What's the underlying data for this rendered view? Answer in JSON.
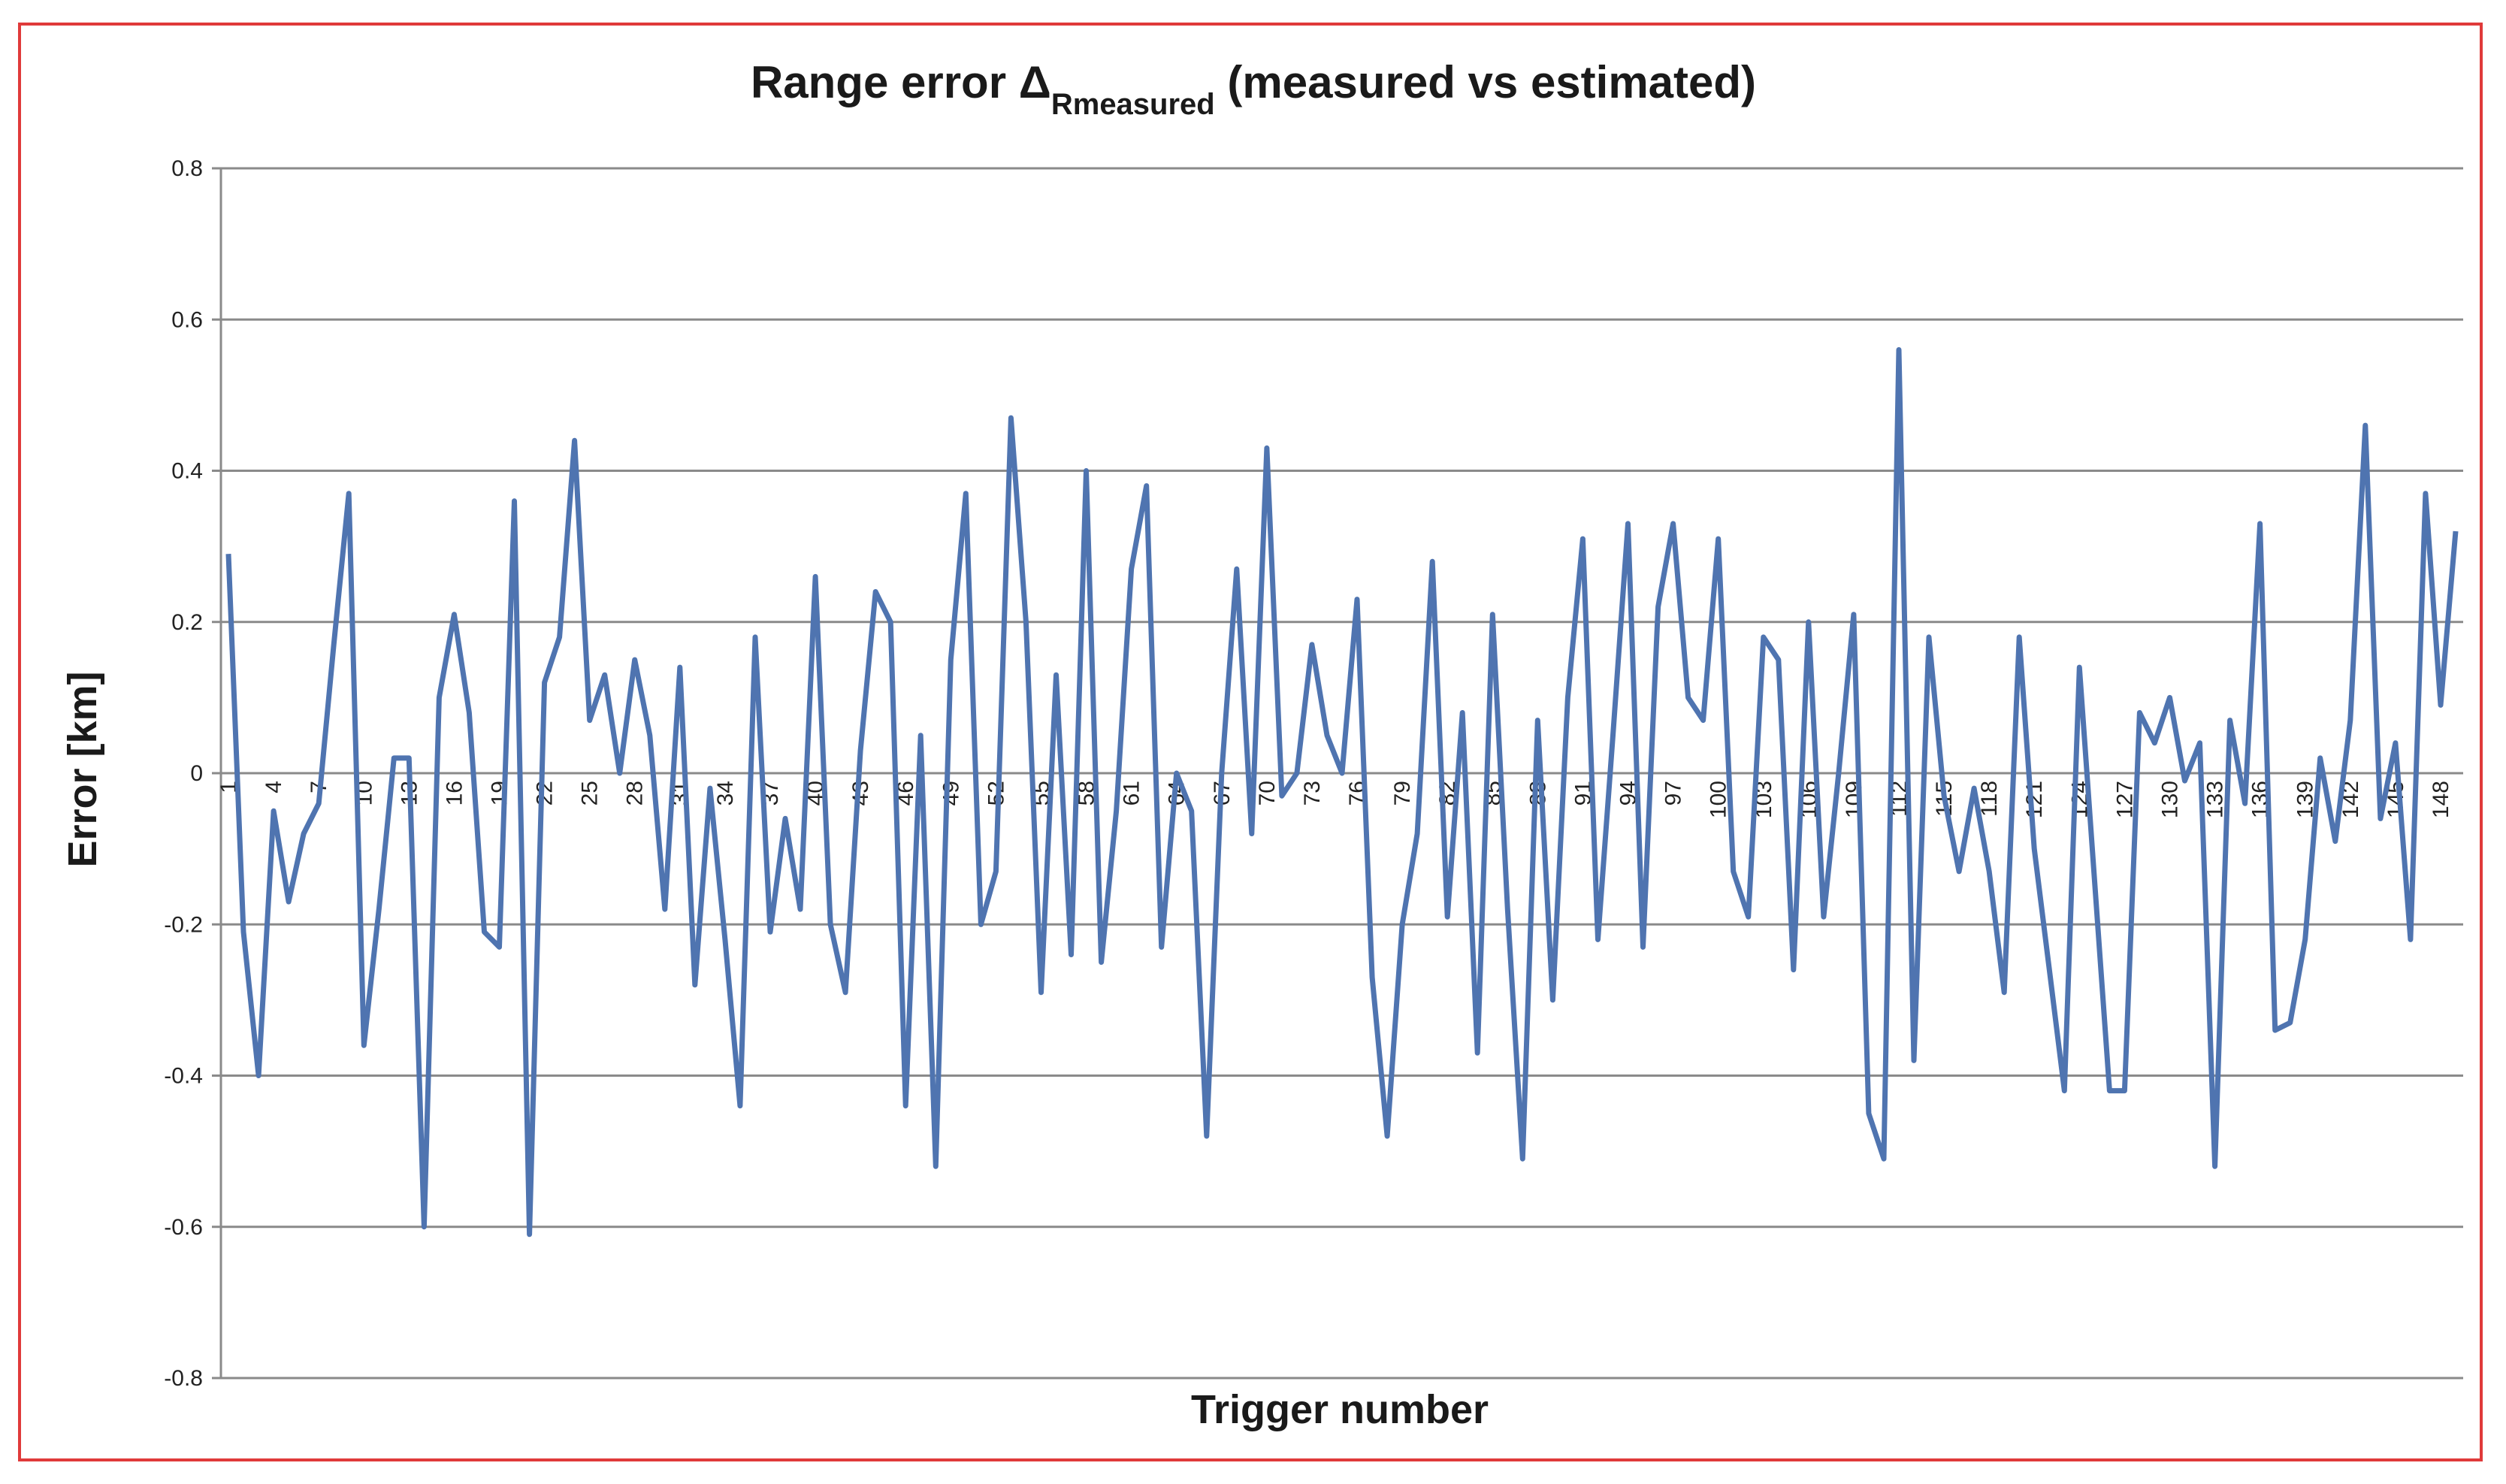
{
  "chart_data": {
    "type": "line",
    "title": "Range error Δ",
    "title_subscript": "Rmeasured",
    "title_suffix": " (measured vs estimated)",
    "xlabel": "Trigger number",
    "ylabel": "Error [km]",
    "ylim": [
      -0.8,
      0.8
    ],
    "yticks": [
      "0.8",
      "0.6",
      "0.4",
      "0.2",
      "0",
      "-0.2",
      "-0.4",
      "-0.6",
      "-0.8"
    ],
    "xtick_labels": [
      "1",
      "4",
      "7",
      "10",
      "13",
      "16",
      "19",
      "22",
      "25",
      "28",
      "31",
      "34",
      "37",
      "40",
      "43",
      "46",
      "49",
      "52",
      "55",
      "58",
      "61",
      "64",
      "67",
      "70",
      "73",
      "76",
      "79",
      "82",
      "85",
      "88",
      "91",
      "94",
      "97",
      "100",
      "103",
      "106",
      "109",
      "112",
      "115",
      "118",
      "121",
      "124",
      "127",
      "130",
      "133",
      "136",
      "139",
      "142",
      "145",
      "148"
    ],
    "grid": true,
    "legend": "none",
    "series_color": "#4f74b0",
    "x_start": 1,
    "values": [
      0.29,
      -0.21,
      -0.4,
      -0.05,
      -0.17,
      -0.08,
      -0.04,
      0.17,
      0.37,
      -0.36,
      -0.18,
      0.02,
      0.02,
      -0.6,
      0.1,
      0.21,
      0.08,
      -0.21,
      -0.23,
      0.36,
      -0.61,
      0.12,
      0.18,
      0.44,
      0.07,
      0.13,
      0.0,
      0.15,
      0.05,
      -0.18,
      0.14,
      -0.28,
      -0.02,
      -0.22,
      -0.44,
      0.18,
      -0.21,
      -0.06,
      -0.18,
      0.26,
      -0.2,
      -0.29,
      0.03,
      0.24,
      0.2,
      -0.44,
      0.05,
      -0.52,
      0.15,
      0.37,
      -0.2,
      -0.13,
      0.47,
      0.2,
      -0.29,
      0.13,
      -0.24,
      0.4,
      -0.25,
      -0.05,
      0.27,
      0.38,
      -0.23,
      0.0,
      -0.05,
      -0.48,
      0.0,
      0.27,
      -0.08,
      0.43,
      -0.03,
      0.0,
      0.17,
      0.05,
      0.0,
      0.23,
      -0.27,
      -0.48,
      -0.2,
      -0.08,
      0.28,
      -0.19,
      0.08,
      -0.37,
      0.21,
      -0.18,
      -0.51,
      0.07,
      -0.3,
      0.1,
      0.31,
      -0.22,
      0.05,
      0.33,
      -0.23,
      0.22,
      0.33,
      0.1,
      0.07,
      0.31,
      -0.13,
      -0.19,
      0.18,
      0.15,
      -0.26,
      0.2,
      -0.19,
      0.0,
      0.21,
      -0.45,
      -0.51,
      0.56,
      -0.38,
      0.18,
      -0.03,
      -0.13,
      -0.02,
      -0.13,
      -0.29,
      0.18,
      -0.1,
      -0.26,
      -0.42,
      0.14,
      -0.14,
      -0.42,
      -0.42,
      0.08,
      0.04,
      0.1,
      -0.01,
      0.04,
      -0.52,
      0.07,
      -0.04,
      0.33,
      -0.34,
      -0.33,
      -0.22,
      0.02,
      -0.09,
      0.07,
      0.46,
      -0.06,
      0.04,
      -0.22,
      0.37,
      0.09,
      0.32
    ]
  }
}
